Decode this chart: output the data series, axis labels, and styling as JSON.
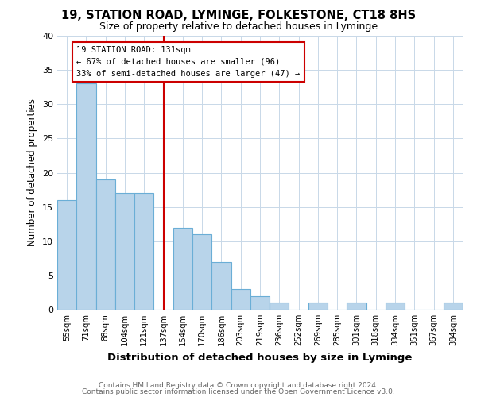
{
  "title1": "19, STATION ROAD, LYMINGE, FOLKESTONE, CT18 8HS",
  "title2": "Size of property relative to detached houses in Lyminge",
  "xlabel": "Distribution of detached houses by size in Lyminge",
  "ylabel": "Number of detached properties",
  "categories": [
    "55sqm",
    "71sqm",
    "88sqm",
    "104sqm",
    "121sqm",
    "137sqm",
    "154sqm",
    "170sqm",
    "186sqm",
    "203sqm",
    "219sqm",
    "236sqm",
    "252sqm",
    "269sqm",
    "285sqm",
    "301sqm",
    "318sqm",
    "334sqm",
    "351sqm",
    "367sqm",
    "384sqm"
  ],
  "values": [
    16,
    33,
    19,
    17,
    17,
    0,
    12,
    11,
    7,
    3,
    2,
    1,
    0,
    1,
    0,
    1,
    0,
    1,
    0,
    0,
    1
  ],
  "bar_color": "#b8d4ea",
  "bar_edge_color": "#6aaed6",
  "vline_index": 5,
  "annotation_title": "19 STATION ROAD: 131sqm",
  "annotation_line1": "← 67% of detached houses are smaller (96)",
  "annotation_line2": "33% of semi-detached houses are larger (47) →",
  "annotation_box_color": "#ffffff",
  "annotation_box_edge": "#cc0000",
  "vline_color": "#cc0000",
  "ylim": [
    0,
    40
  ],
  "yticks": [
    0,
    5,
    10,
    15,
    20,
    25,
    30,
    35,
    40
  ],
  "footer1": "Contains HM Land Registry data © Crown copyright and database right 2024.",
  "footer2": "Contains public sector information licensed under the Open Government Licence v3.0."
}
